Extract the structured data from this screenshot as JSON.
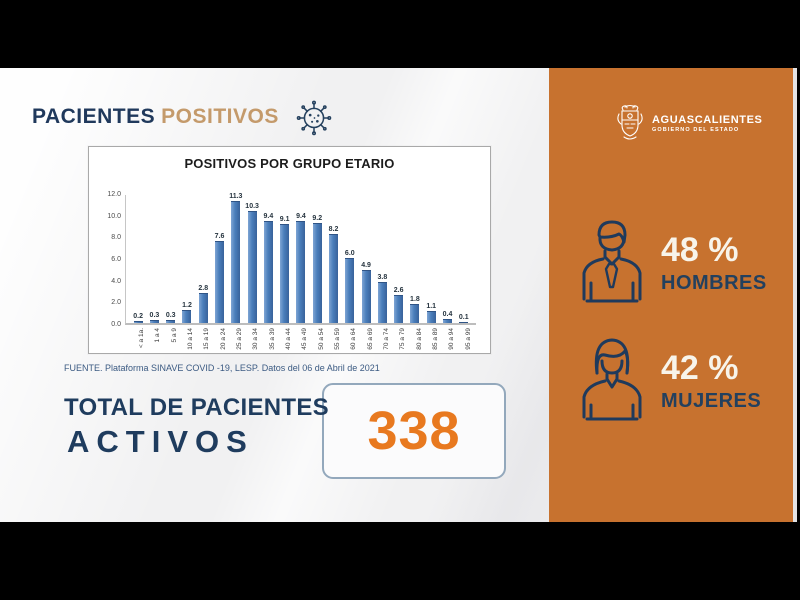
{
  "header": {
    "title_primary": "PACIENTES",
    "title_secondary": "POSITIVOS"
  },
  "chart_data": {
    "type": "bar",
    "title": "POSITIVOS POR GRUPO ETARIO",
    "categories": [
      "< a 1a.",
      "1 a 4",
      "5 a 9",
      "10 a 14",
      "15 a 19",
      "20 a 24",
      "25 a 29",
      "30 a 34",
      "35 a 39",
      "40 a 44",
      "45 a 49",
      "50 a 54",
      "55 a 59",
      "60 a 64",
      "65 a 69",
      "70 a 74",
      "75 a 79",
      "80 a 84",
      "85 a 89",
      "90 a 94",
      "95 a 99"
    ],
    "values": [
      0.2,
      0.3,
      0.3,
      1.2,
      2.8,
      7.6,
      11.3,
      10.3,
      9.4,
      9.1,
      9.4,
      9.2,
      8.2,
      6.0,
      4.9,
      3.8,
      2.6,
      1.8,
      1.1,
      0.4,
      0.1
    ],
    "y_ticks": [
      "12.0",
      "10.0",
      "8.0",
      "6.0",
      "4.0",
      "2.0",
      "0.0"
    ],
    "ylim": [
      0,
      12
    ],
    "xlabel": "",
    "ylabel": "",
    "grid": false,
    "legend": "none",
    "bar_color": "#4a7ebb"
  },
  "source_note": "FUENTE. Plataforma SINAVE COVID -19, LESP. Datos del 06 de Abril de 2021",
  "total": {
    "label_line1": "TOTAL DE PACIENTES",
    "label_line2": "ACTIVOS",
    "value": "338"
  },
  "right_panel": {
    "logo": {
      "name": "AGUASCALIENTES",
      "subtitle": "GOBIERNO DEL ESTADO"
    },
    "stats": [
      {
        "percent": "48 %",
        "label": "HOMBRES"
      },
      {
        "percent": "42 %",
        "label": "MUJERES"
      }
    ]
  },
  "colors": {
    "panel_orange": "#c7722f",
    "navy": "#1f3c5e",
    "tan": "#c49a6b",
    "accent_orange": "#e8791f",
    "bar_blue": "#4a7ebb"
  }
}
